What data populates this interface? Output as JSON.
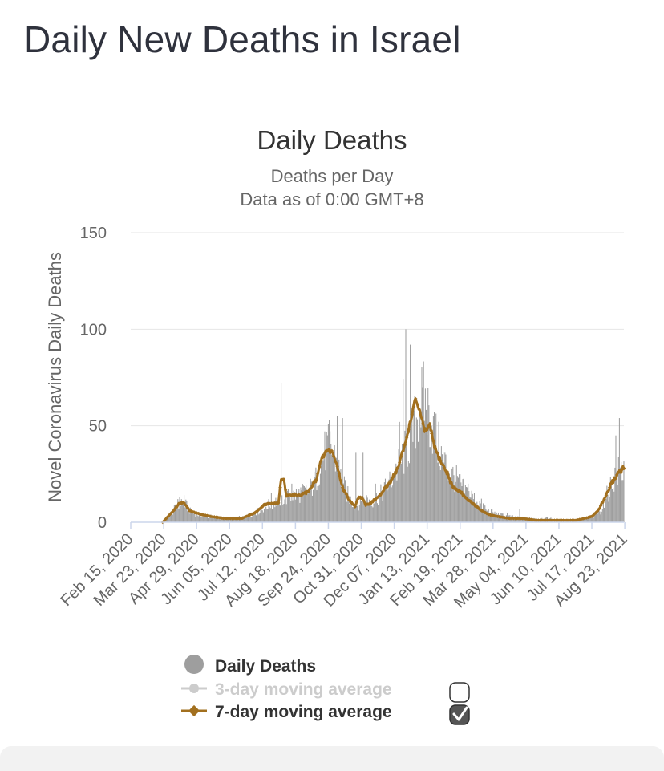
{
  "page": {
    "title": "Daily New Deaths in Israel"
  },
  "colors": {
    "bars": "#9e9e9e",
    "avg7": "#a2701f",
    "avg3_disabled": "#cccccc",
    "grid": "#e6e6e6",
    "axis": "#ccd6eb",
    "text": "#666666"
  },
  "chart_data": {
    "type": "bar",
    "title": "Daily Deaths",
    "subtitle": [
      "Deaths per Day",
      "Data as of 0:00 GMT+8"
    ],
    "ylabel": "Novel Coronavirus Daily Deaths",
    "ylim": [
      0,
      150
    ],
    "yticks": [
      "0",
      "50",
      "100",
      "150"
    ],
    "start_date": "Feb 15, 2020",
    "x_tick_labels": [
      "Feb 15, 2020",
      "Mar 23, 2020",
      "Apr 29, 2020",
      "Jun 05, 2020",
      "Jul 12, 2020",
      "Aug 18, 2020",
      "Sep 24, 2020",
      "Oct 31, 2020",
      "Dec 07, 2020",
      "Jan 13, 2021",
      "Feb 19, 2021",
      "Mar 28, 2021",
      "May 04, 2021",
      "Jun 10, 2021",
      "Jul 17, 2021",
      "Aug 23, 2021"
    ],
    "series": [
      {
        "name": "Daily Deaths",
        "type": "bar",
        "anchors": [
          [
            0,
            0
          ],
          [
            36,
            0
          ],
          [
            40,
            2
          ],
          [
            48,
            6
          ],
          [
            55,
            10
          ],
          [
            62,
            9
          ],
          [
            68,
            5
          ],
          [
            75,
            4
          ],
          [
            85,
            3
          ],
          [
            100,
            2
          ],
          [
            115,
            2
          ],
          [
            130,
            3
          ],
          [
            145,
            6
          ],
          [
            155,
            9
          ],
          [
            165,
            11
          ],
          [
            175,
            13
          ],
          [
            183,
            14
          ],
          [
            190,
            15
          ],
          [
            200,
            16
          ],
          [
            208,
            22
          ],
          [
            214,
            32
          ],
          [
            220,
            38
          ],
          [
            226,
            38
          ],
          [
            232,
            30
          ],
          [
            238,
            20
          ],
          [
            245,
            13
          ],
          [
            252,
            8
          ],
          [
            258,
            10
          ],
          [
            265,
            12
          ],
          [
            272,
            11
          ],
          [
            280,
            14
          ],
          [
            290,
            20
          ],
          [
            300,
            28
          ],
          [
            310,
            38
          ],
          [
            318,
            48
          ],
          [
            324,
            60
          ],
          [
            330,
            63
          ],
          [
            336,
            54
          ],
          [
            342,
            45
          ],
          [
            350,
            33
          ],
          [
            358,
            26
          ],
          [
            366,
            22
          ],
          [
            374,
            17
          ],
          [
            382,
            14
          ],
          [
            392,
            10
          ],
          [
            402,
            6
          ],
          [
            412,
            4
          ],
          [
            425,
            3
          ],
          [
            440,
            2
          ],
          [
            455,
            2
          ],
          [
            470,
            2
          ],
          [
            485,
            1
          ],
          [
            500,
            1
          ],
          [
            512,
            2
          ],
          [
            520,
            3
          ],
          [
            528,
            6
          ],
          [
            535,
            14
          ],
          [
            542,
            22
          ],
          [
            548,
            26
          ],
          [
            554,
            28
          ]
        ],
        "spikes": [
          [
            53,
            12
          ],
          [
            57,
            12
          ],
          [
            60,
            14
          ],
          [
            90,
            4
          ],
          [
            158,
            15
          ],
          [
            169,
            72
          ],
          [
            181,
            20
          ],
          [
            223,
            53
          ],
          [
            232,
            55
          ],
          [
            238,
            54
          ],
          [
            253,
            36
          ],
          [
            261,
            36
          ],
          [
            275,
            20
          ],
          [
            302,
            52
          ],
          [
            306,
            74
          ],
          [
            309,
            100
          ],
          [
            314,
            92
          ],
          [
            328,
            70
          ],
          [
            338,
            50
          ],
          [
            353,
            36
          ],
          [
            367,
            24
          ],
          [
            379,
            20
          ],
          [
            400,
            6
          ],
          [
            423,
            5
          ],
          [
            437,
            7
          ],
          [
            545,
            45
          ],
          [
            549,
            54
          ]
        ]
      },
      {
        "name": "3-day moving average",
        "type": "line",
        "visible": false
      },
      {
        "name": "7-day moving average",
        "type": "line",
        "anchors": [
          [
            36,
            0
          ],
          [
            40,
            2
          ],
          [
            48,
            6
          ],
          [
            55,
            10
          ],
          [
            60,
            10
          ],
          [
            66,
            6
          ],
          [
            72,
            5
          ],
          [
            80,
            4
          ],
          [
            90,
            3
          ],
          [
            105,
            2
          ],
          [
            125,
            2
          ],
          [
            140,
            5
          ],
          [
            150,
            9
          ],
          [
            160,
            10
          ],
          [
            166,
            10
          ],
          [
            169,
            22
          ],
          [
            172,
            22
          ],
          [
            175,
            14
          ],
          [
            182,
            14
          ],
          [
            190,
            14
          ],
          [
            200,
            16
          ],
          [
            208,
            22
          ],
          [
            214,
            32
          ],
          [
            220,
            37
          ],
          [
            226,
            37
          ],
          [
            232,
            29
          ],
          [
            238,
            18
          ],
          [
            245,
            12
          ],
          [
            252,
            8
          ],
          [
            256,
            13
          ],
          [
            260,
            13
          ],
          [
            264,
            9
          ],
          [
            270,
            10
          ],
          [
            280,
            14
          ],
          [
            290,
            20
          ],
          [
            300,
            28
          ],
          [
            308,
            40
          ],
          [
            314,
            52
          ],
          [
            320,
            64
          ],
          [
            325,
            57
          ],
          [
            330,
            47
          ],
          [
            336,
            50
          ],
          [
            342,
            38
          ],
          [
            350,
            30
          ],
          [
            356,
            25
          ],
          [
            362,
            18
          ],
          [
            370,
            16
          ],
          [
            378,
            12
          ],
          [
            386,
            9
          ],
          [
            394,
            6
          ],
          [
            402,
            4
          ],
          [
            412,
            3
          ],
          [
            425,
            2
          ],
          [
            440,
            2
          ],
          [
            455,
            1
          ],
          [
            470,
            1
          ],
          [
            485,
            1
          ],
          [
            500,
            1
          ],
          [
            510,
            2
          ],
          [
            518,
            3
          ],
          [
            525,
            6
          ],
          [
            532,
            12
          ],
          [
            540,
            20
          ],
          [
            548,
            26
          ],
          [
            554,
            28
          ]
        ]
      }
    ],
    "legend": [
      {
        "label": "Daily Deaths",
        "enabled": true,
        "has_checkbox": false
      },
      {
        "label": "3-day moving average",
        "enabled": false,
        "has_checkbox": true,
        "checked": false
      },
      {
        "label": "7-day moving average",
        "enabled": true,
        "has_checkbox": true,
        "checked": true
      }
    ]
  }
}
